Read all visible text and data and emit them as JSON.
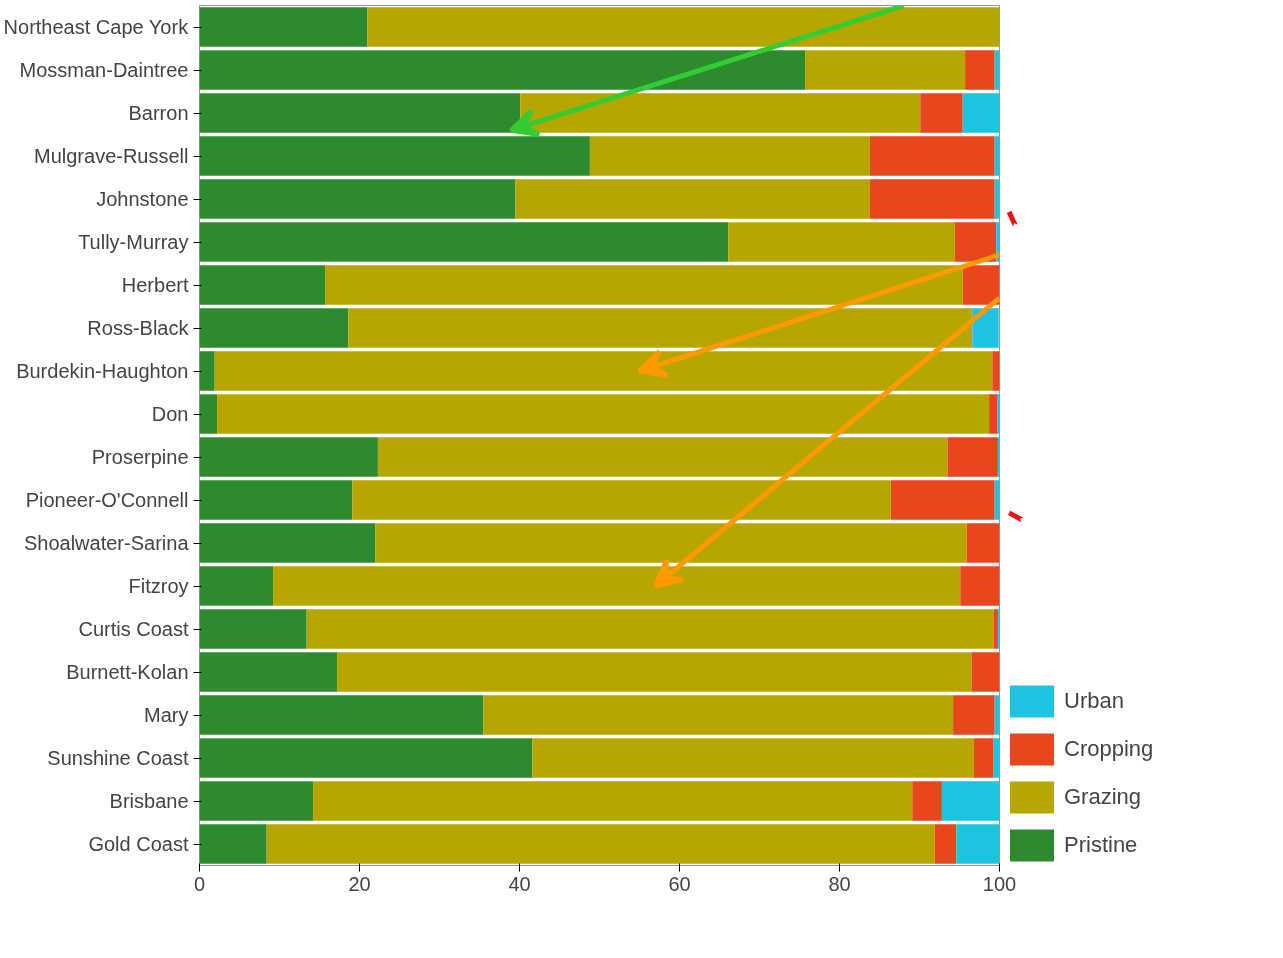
{
  "chart_data": {
    "type": "bar",
    "orientation": "horizontal",
    "stacked": true,
    "categories": [
      "Northeast Cape York",
      "Mossman-Daintree",
      "Barron",
      "Mulgrave-Russell",
      "Johnstone",
      "Tully-Murray",
      "Herbert",
      "Ross-Black",
      "Burdekin-Haughton",
      "Don",
      "Proserpine",
      "Pioneer-O'Connell",
      "Shoalwater-Sarina",
      "Fitzroy",
      "Curtis Coast",
      "Burnett-Kolan",
      "Mary",
      "Sunshine Coast",
      "Brisbane",
      "Gold Coast"
    ],
    "series": [
      {
        "name": "Pristine",
        "color": "#2e8a2e",
        "values": [
          21.0,
          75.7,
          40.1,
          48.8,
          39.5,
          66.1,
          15.7,
          18.6,
          1.9,
          2.2,
          22.3,
          19.1,
          22.0,
          9.2,
          13.4,
          17.2,
          35.5,
          41.6,
          14.2,
          8.4
        ]
      },
      {
        "name": "Grazing",
        "color": "#b8a600",
        "values": [
          79.0,
          20.0,
          50.0,
          35.0,
          44.3,
          28.3,
          79.7,
          78.0,
          97.2,
          96.5,
          71.2,
          67.3,
          73.9,
          85.9,
          85.9,
          79.3,
          58.7,
          55.2,
          74.9,
          83.5
        ]
      },
      {
        "name": "Cropping",
        "color": "#e8461c",
        "values": [
          0,
          3.7,
          5.3,
          15.6,
          15.6,
          5.2,
          4.6,
          0,
          0.9,
          1.0,
          6.3,
          13.0,
          4.1,
          4.9,
          0.5,
          3.5,
          5.2,
          2.4,
          3.7,
          2.7
        ]
      },
      {
        "name": "Urban",
        "color": "#1ec3e0",
        "values": [
          0,
          0.6,
          4.6,
          0.6,
          0.6,
          0.4,
          0,
          3.3,
          0,
          0.3,
          0.2,
          0.6,
          0,
          0,
          0.2,
          0,
          0.6,
          0.8,
          7.2,
          5.4
        ]
      }
    ],
    "xlim": [
      0,
      100
    ],
    "xticks": [
      0,
      20,
      40,
      60,
      80,
      100
    ],
    "grid": false,
    "legend": "bottom right"
  }
}
